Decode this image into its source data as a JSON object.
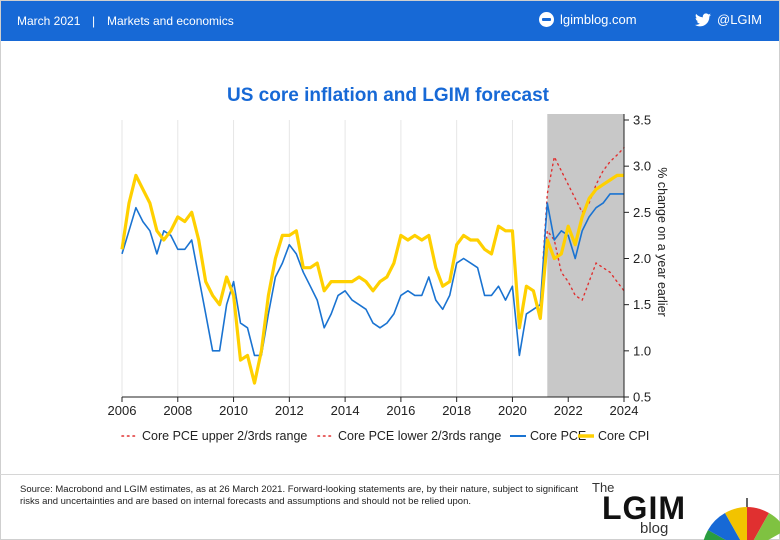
{
  "header": {
    "date": "March 2021",
    "separator": "|",
    "section": "Markets and economics",
    "site": "lgimblog.com",
    "site_icon": "globe-icon",
    "twitter": "@LGIM",
    "twitter_icon": "twitter-bird-icon",
    "bar_color": "#1769d6"
  },
  "chart_data": {
    "type": "line",
    "title": "US core inflation and LGIM forecast",
    "title_color": "#1769d6",
    "ylabel": "% change on a year earlier",
    "xlim": [
      2006,
      2024
    ],
    "ylim": [
      0.5,
      3.5
    ],
    "xticks": [
      "2006",
      "2008",
      "2010",
      "2012",
      "2014",
      "2016",
      "2018",
      "2020",
      "2022",
      "2024"
    ],
    "yticks": [
      "0.5",
      "1.0",
      "1.5",
      "2.0",
      "2.5",
      "3.0",
      "3.5"
    ],
    "yaxis_side": "right",
    "grid": "vertical",
    "forecast_shading": {
      "from": 2021.25,
      "to": 2024,
      "color": "#c8c8c8"
    },
    "legend_position": "bottom",
    "series": [
      {
        "name": "Core PCE upper 2/3rds range",
        "style": "dotted",
        "color": "#e03030",
        "x": [
          2021.1,
          2021.25,
          2021.5,
          2021.75,
          2022,
          2022.25,
          2022.5,
          2022.75,
          2023,
          2023.25,
          2023.5,
          2023.75,
          2024
        ],
        "y": [
          2.0,
          2.7,
          3.1,
          2.95,
          2.8,
          2.65,
          2.5,
          2.6,
          2.8,
          2.95,
          3.05,
          3.12,
          3.2
        ]
      },
      {
        "name": "Core PCE lower 2/3rds range",
        "style": "dotted",
        "color": "#e03030",
        "x": [
          2021.1,
          2021.25,
          2021.5,
          2021.75,
          2022,
          2022.25,
          2022.5,
          2022.75,
          2023,
          2023.25,
          2023.5,
          2023.75,
          2024
        ],
        "y": [
          1.8,
          2.3,
          2.2,
          1.85,
          1.75,
          1.6,
          1.55,
          1.75,
          1.95,
          1.9,
          1.85,
          1.75,
          1.65
        ]
      },
      {
        "name": "Core PCE",
        "style": "solid",
        "color": "#1a73d1",
        "x": [
          2006,
          2006.25,
          2006.5,
          2006.75,
          2007,
          2007.25,
          2007.5,
          2007.75,
          2008,
          2008.25,
          2008.5,
          2008.75,
          2009,
          2009.25,
          2009.5,
          2009.75,
          2010,
          2010.25,
          2010.5,
          2010.75,
          2011,
          2011.25,
          2011.5,
          2011.75,
          2012,
          2012.25,
          2012.5,
          2012.75,
          2013,
          2013.25,
          2013.5,
          2013.75,
          2014,
          2014.25,
          2014.5,
          2014.75,
          2015,
          2015.25,
          2015.5,
          2015.75,
          2016,
          2016.25,
          2016.5,
          2016.75,
          2017,
          2017.25,
          2017.5,
          2017.75,
          2018,
          2018.25,
          2018.5,
          2018.75,
          2019,
          2019.25,
          2019.5,
          2019.75,
          2020,
          2020.25,
          2020.5,
          2020.75,
          2021,
          2021.25,
          2021.5,
          2021.75,
          2022,
          2022.25,
          2022.5,
          2022.75,
          2023,
          2023.25,
          2023.5,
          2023.75,
          2024
        ],
        "y": [
          2.05,
          2.3,
          2.55,
          2.4,
          2.3,
          2.05,
          2.3,
          2.25,
          2.1,
          2.1,
          2.2,
          1.8,
          1.4,
          1.0,
          1.0,
          1.5,
          1.75,
          1.3,
          1.25,
          0.95,
          0.95,
          1.4,
          1.8,
          1.95,
          2.15,
          2.05,
          1.85,
          1.7,
          1.55,
          1.25,
          1.4,
          1.6,
          1.65,
          1.55,
          1.5,
          1.45,
          1.3,
          1.25,
          1.3,
          1.4,
          1.6,
          1.65,
          1.6,
          1.6,
          1.8,
          1.55,
          1.45,
          1.6,
          1.95,
          2.0,
          1.95,
          1.9,
          1.6,
          1.6,
          1.7,
          1.55,
          1.7,
          0.95,
          1.4,
          1.45,
          1.5,
          2.6,
          2.2,
          2.3,
          2.25,
          2.0,
          2.3,
          2.45,
          2.55,
          2.6,
          2.7,
          2.7,
          2.7
        ]
      },
      {
        "name": "Core CPI",
        "style": "solid",
        "color": "#ffd000",
        "x": [
          2006,
          2006.25,
          2006.5,
          2006.75,
          2007,
          2007.25,
          2007.5,
          2007.75,
          2008,
          2008.25,
          2008.5,
          2008.75,
          2009,
          2009.25,
          2009.5,
          2009.75,
          2010,
          2010.25,
          2010.5,
          2010.75,
          2011,
          2011.25,
          2011.5,
          2011.75,
          2012,
          2012.25,
          2012.5,
          2012.75,
          2013,
          2013.25,
          2013.5,
          2013.75,
          2014,
          2014.25,
          2014.5,
          2014.75,
          2015,
          2015.25,
          2015.5,
          2015.75,
          2016,
          2016.25,
          2016.5,
          2016.75,
          2017,
          2017.25,
          2017.5,
          2017.75,
          2018,
          2018.25,
          2018.5,
          2018.75,
          2019,
          2019.25,
          2019.5,
          2019.75,
          2020,
          2020.25,
          2020.5,
          2020.75,
          2021,
          2021.25,
          2021.5,
          2021.75,
          2022,
          2022.25,
          2022.5,
          2022.75,
          2023,
          2023.25,
          2023.5,
          2023.75,
          2024
        ],
        "y": [
          2.1,
          2.6,
          2.9,
          2.75,
          2.6,
          2.3,
          2.2,
          2.3,
          2.45,
          2.4,
          2.5,
          2.2,
          1.75,
          1.6,
          1.5,
          1.8,
          1.6,
          0.9,
          0.95,
          0.65,
          1.0,
          1.6,
          2.0,
          2.25,
          2.25,
          2.3,
          1.9,
          1.9,
          1.95,
          1.65,
          1.75,
          1.75,
          1.75,
          1.75,
          1.8,
          1.75,
          1.65,
          1.75,
          1.8,
          1.95,
          2.25,
          2.2,
          2.25,
          2.2,
          2.25,
          1.9,
          1.7,
          1.75,
          2.15,
          2.25,
          2.2,
          2.2,
          2.1,
          2.05,
          2.35,
          2.3,
          2.3,
          1.25,
          1.7,
          1.65,
          1.35,
          2.2,
          2.0,
          2.05,
          2.35,
          2.15,
          2.45,
          2.65,
          2.75,
          2.8,
          2.85,
          2.9,
          2.9
        ]
      }
    ]
  },
  "footer": {
    "source": "Source: Macrobond and LGIM  estimates, as at 26 March 2021. Forward-looking statements are, by their nature, subject to significant risks and uncertainties and are based on internal forecasts and assumptions and should not be relied upon.",
    "logo_the": "The",
    "logo_name": "LGIM",
    "logo_blog": "blog",
    "logo_colors": [
      "#2a9d3f",
      "#1769d6",
      "#f2c300",
      "#e03030",
      "#7fc241"
    ]
  }
}
